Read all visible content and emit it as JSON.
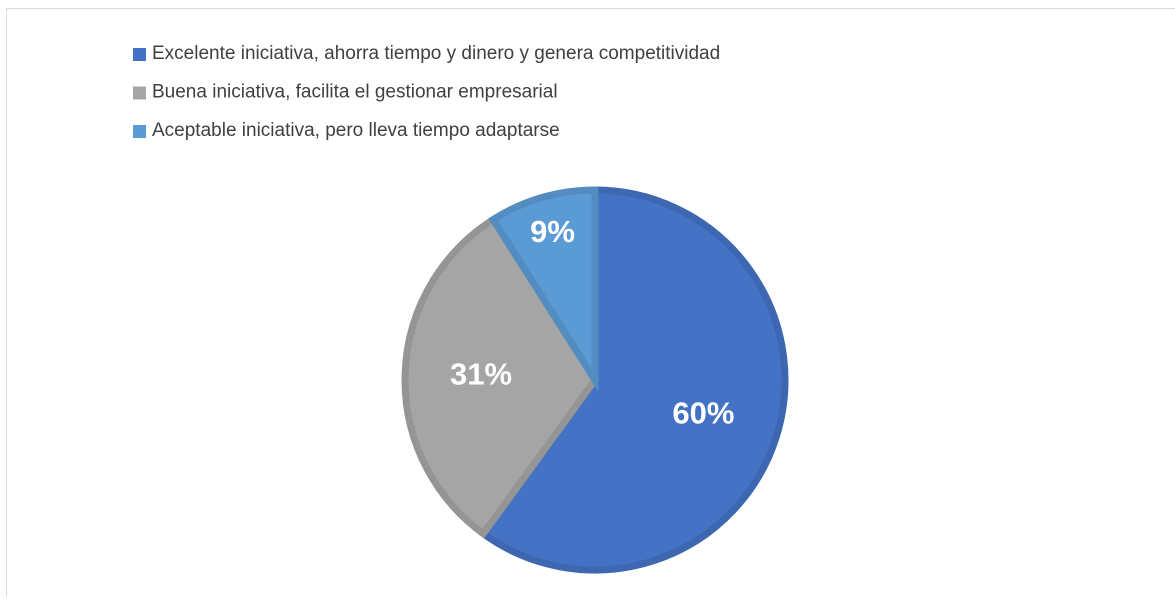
{
  "chart_data": {
    "type": "pie",
    "categories": [
      "Excelente iniciativa, ahorra tiempo y dinero y genera competitividad",
      "Buena iniciativa, facilita el gestionar empresarial",
      "Aceptable iniciativa, pero lleva tiempo adaptarse"
    ],
    "values": [
      60,
      31,
      9
    ],
    "value_labels": [
      "60%",
      "31%",
      "9%"
    ],
    "colors": [
      "#4472c4",
      "#a5a5a5",
      "#5b9bd5"
    ],
    "legend": "top-left"
  }
}
